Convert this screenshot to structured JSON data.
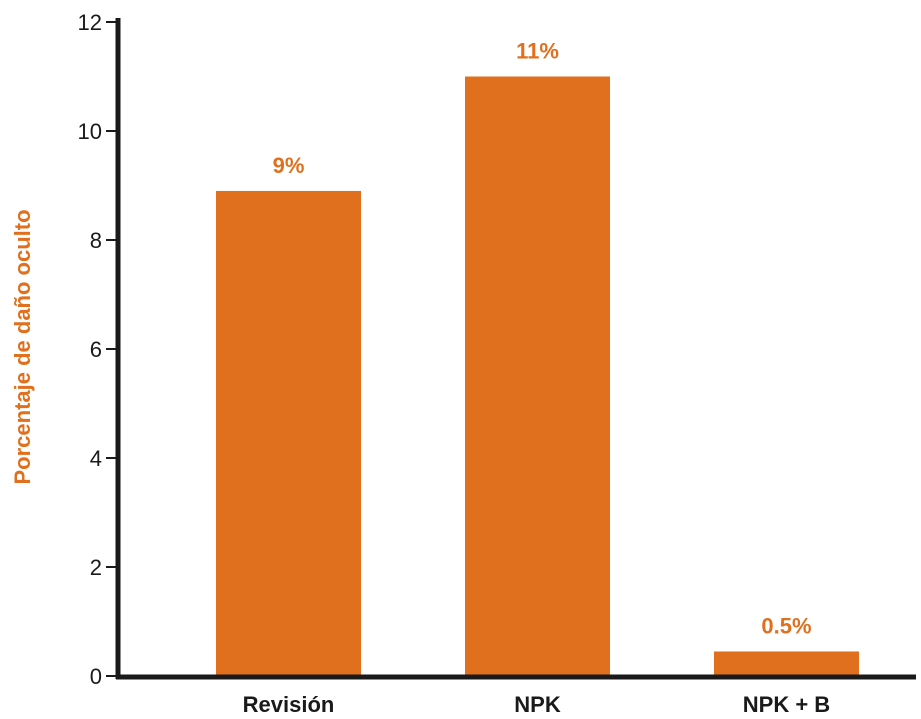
{
  "colors": {
    "bar": "#E0701E",
    "accent_text": "#E0701E",
    "axis": "#1a1a1a"
  },
  "chart_data": {
    "type": "bar",
    "categories": [
      "Revisión",
      "NPK",
      "NPK + B"
    ],
    "values": [
      8.9,
      11.0,
      0.45
    ],
    "data_labels": [
      "9%",
      "11%",
      "0.5%"
    ],
    "title": "",
    "xlabel": "",
    "ylabel": "Porcentaje de daño oculto",
    "ylim": [
      0,
      12
    ],
    "yticks": [
      0,
      2,
      4,
      6,
      8,
      10,
      12
    ],
    "grid": false,
    "legend": "none"
  }
}
